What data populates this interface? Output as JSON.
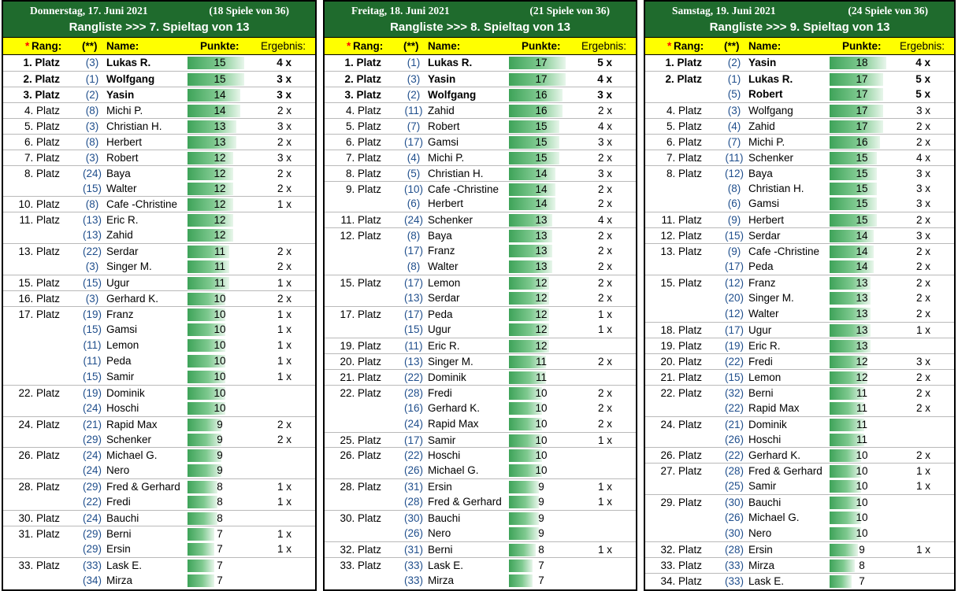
{
  "columns": {
    "star": "*",
    "rank": "Rang:",
    "prev": "(**)",
    "name": "Name:",
    "points": "Punkte:",
    "result": "Ergebnis:"
  },
  "colors": {
    "header_bg": "#1f6b2d",
    "columns_bg": "#ffff00",
    "bar": "#3ea359",
    "prev_text": "#1f4e8c",
    "star": "#ff0000"
  },
  "panels": [
    {
      "date": "Donnerstag, 17. Juni 2021",
      "games": "(18 Spiele von 36)",
      "subtitle": "Rangliste >>> 7. Spieltag von 13",
      "rows": [
        {
          "rank": "1. Platz",
          "prev": "(3)",
          "name": "Lukas R.",
          "pts": 15,
          "res": "4 x"
        },
        {
          "rank": "2. Platz",
          "prev": "(1)",
          "name": "Wolfgang",
          "pts": 15,
          "res": "3 x"
        },
        {
          "rank": "3. Platz",
          "prev": "(2)",
          "name": "Yasin",
          "pts": 14,
          "res": "3 x"
        },
        {
          "rank": "4. Platz",
          "prev": "(8)",
          "name": "Michi P.",
          "pts": 14,
          "res": "2 x"
        },
        {
          "rank": "5. Platz",
          "prev": "(3)",
          "name": "Christian H.",
          "pts": 13,
          "res": "3 x"
        },
        {
          "rank": "6. Platz",
          "prev": "(8)",
          "name": "Herbert",
          "pts": 13,
          "res": "2 x"
        },
        {
          "rank": "7. Platz",
          "prev": "(3)",
          "name": "Robert",
          "pts": 12,
          "res": "3 x"
        },
        {
          "rank": "8. Platz",
          "prev": "(24)",
          "name": "Baya",
          "pts": 12,
          "res": "2 x"
        },
        {
          "rank": "",
          "prev": "(15)",
          "name": "Walter",
          "pts": 12,
          "res": "2 x"
        },
        {
          "rank": "10. Platz",
          "prev": "(8)",
          "name": "Cafe -Christine",
          "pts": 12,
          "res": "1 x"
        },
        {
          "rank": "11. Platz",
          "prev": "(13)",
          "name": "Eric R.",
          "pts": 12,
          "res": ""
        },
        {
          "rank": "",
          "prev": "(13)",
          "name": "Zahid",
          "pts": 12,
          "res": ""
        },
        {
          "rank": "13. Platz",
          "prev": "(22)",
          "name": "Serdar",
          "pts": 11,
          "res": "2 x"
        },
        {
          "rank": "",
          "prev": "(3)",
          "name": "Singer M.",
          "pts": 11,
          "res": "2 x"
        },
        {
          "rank": "15. Platz",
          "prev": "(15)",
          "name": "Ugur",
          "pts": 11,
          "res": "1 x"
        },
        {
          "rank": "16. Platz",
          "prev": "(3)",
          "name": "Gerhard K.",
          "pts": 10,
          "res": "2 x"
        },
        {
          "rank": "17. Platz",
          "prev": "(19)",
          "name": "Franz",
          "pts": 10,
          "res": "1 x"
        },
        {
          "rank": "",
          "prev": "(15)",
          "name": "Gamsi",
          "pts": 10,
          "res": "1 x"
        },
        {
          "rank": "",
          "prev": "(11)",
          "name": "Lemon",
          "pts": 10,
          "res": "1 x"
        },
        {
          "rank": "",
          "prev": "(11)",
          "name": "Peda",
          "pts": 10,
          "res": "1 x"
        },
        {
          "rank": "",
          "prev": "(15)",
          "name": "Samir",
          "pts": 10,
          "res": "1 x"
        },
        {
          "rank": "22. Platz",
          "prev": "(19)",
          "name": "Dominik",
          "pts": 10,
          "res": ""
        },
        {
          "rank": "",
          "prev": "(24)",
          "name": "Hoschi",
          "pts": 10,
          "res": ""
        },
        {
          "rank": "24. Platz",
          "prev": "(21)",
          "name": "Rapid Max",
          "pts": 9,
          "res": "2 x"
        },
        {
          "rank": "",
          "prev": "(29)",
          "name": "Schenker",
          "pts": 9,
          "res": "2 x"
        },
        {
          "rank": "26. Platz",
          "prev": "(24)",
          "name": "Michael G.",
          "pts": 9,
          "res": ""
        },
        {
          "rank": "",
          "prev": "(24)",
          "name": "Nero",
          "pts": 9,
          "res": ""
        },
        {
          "rank": "28. Platz",
          "prev": "(29)",
          "name": "Fred & Gerhard",
          "pts": 8,
          "res": "1 x"
        },
        {
          "rank": "",
          "prev": "(22)",
          "name": "Fredi",
          "pts": 8,
          "res": "1 x"
        },
        {
          "rank": "30. Platz",
          "prev": "(24)",
          "name": "Bauchi",
          "pts": 8,
          "res": ""
        },
        {
          "rank": "31. Platz",
          "prev": "(29)",
          "name": "Berni",
          "pts": 7,
          "res": "1 x"
        },
        {
          "rank": "",
          "prev": "(29)",
          "name": "Ersin",
          "pts": 7,
          "res": "1 x"
        },
        {
          "rank": "33. Platz",
          "prev": "(33)",
          "name": "Lask E.",
          "pts": 7,
          "res": ""
        },
        {
          "rank": "",
          "prev": "(34)",
          "name": "Mirza",
          "pts": 7,
          "res": ""
        }
      ]
    },
    {
      "date": "Freitag, 18. Juni 2021",
      "games": "(21 Spiele von 36)",
      "subtitle": "Rangliste >>> 8. Spieltag von 13",
      "rows": [
        {
          "rank": "1. Platz",
          "prev": "(1)",
          "name": "Lukas R.",
          "pts": 17,
          "res": "5 x"
        },
        {
          "rank": "2. Platz",
          "prev": "(3)",
          "name": "Yasin",
          "pts": 17,
          "res": "4 x"
        },
        {
          "rank": "3. Platz",
          "prev": "(2)",
          "name": "Wolfgang",
          "pts": 16,
          "res": "3 x"
        },
        {
          "rank": "4. Platz",
          "prev": "(11)",
          "name": "Zahid",
          "pts": 16,
          "res": "2 x"
        },
        {
          "rank": "5. Platz",
          "prev": "(7)",
          "name": "Robert",
          "pts": 15,
          "res": "4 x"
        },
        {
          "rank": "6. Platz",
          "prev": "(17)",
          "name": "Gamsi",
          "pts": 15,
          "res": "3 x"
        },
        {
          "rank": "7. Platz",
          "prev": "(4)",
          "name": "Michi P.",
          "pts": 15,
          "res": "2 x"
        },
        {
          "rank": "8. Platz",
          "prev": "(5)",
          "name": "Christian H.",
          "pts": 14,
          "res": "3 x"
        },
        {
          "rank": "9. Platz",
          "prev": "(10)",
          "name": "Cafe -Christine",
          "pts": 14,
          "res": "2 x"
        },
        {
          "rank": "",
          "prev": "(6)",
          "name": "Herbert",
          "pts": 14,
          "res": "2 x"
        },
        {
          "rank": "11. Platz",
          "prev": "(24)",
          "name": "Schenker",
          "pts": 13,
          "res": "4 x"
        },
        {
          "rank": "12. Platz",
          "prev": "(8)",
          "name": "Baya",
          "pts": 13,
          "res": "2 x"
        },
        {
          "rank": "",
          "prev": "(17)",
          "name": "Franz",
          "pts": 13,
          "res": "2 x"
        },
        {
          "rank": "",
          "prev": "(8)",
          "name": "Walter",
          "pts": 13,
          "res": "2 x"
        },
        {
          "rank": "15. Platz",
          "prev": "(17)",
          "name": "Lemon",
          "pts": 12,
          "res": "2 x"
        },
        {
          "rank": "",
          "prev": "(13)",
          "name": "Serdar",
          "pts": 12,
          "res": "2 x"
        },
        {
          "rank": "17. Platz",
          "prev": "(17)",
          "name": "Peda",
          "pts": 12,
          "res": "1 x"
        },
        {
          "rank": "",
          "prev": "(15)",
          "name": "Ugur",
          "pts": 12,
          "res": "1 x"
        },
        {
          "rank": "19. Platz",
          "prev": "(11)",
          "name": "Eric R.",
          "pts": 12,
          "res": ""
        },
        {
          "rank": "20. Platz",
          "prev": "(13)",
          "name": "Singer M.",
          "pts": 11,
          "res": "2 x"
        },
        {
          "rank": "21. Platz",
          "prev": "(22)",
          "name": "Dominik",
          "pts": 11,
          "res": ""
        },
        {
          "rank": "22. Platz",
          "prev": "(28)",
          "name": "Fredi",
          "pts": 10,
          "res": "2 x"
        },
        {
          "rank": "",
          "prev": "(16)",
          "name": "Gerhard K.",
          "pts": 10,
          "res": "2 x"
        },
        {
          "rank": "",
          "prev": "(24)",
          "name": "Rapid Max",
          "pts": 10,
          "res": "2 x"
        },
        {
          "rank": "25. Platz",
          "prev": "(17)",
          "name": "Samir",
          "pts": 10,
          "res": "1 x"
        },
        {
          "rank": "26. Platz",
          "prev": "(22)",
          "name": "Hoschi",
          "pts": 10,
          "res": ""
        },
        {
          "rank": "",
          "prev": "(26)",
          "name": "Michael G.",
          "pts": 10,
          "res": ""
        },
        {
          "rank": "28. Platz",
          "prev": "(31)",
          "name": "Ersin",
          "pts": 9,
          "res": "1 x"
        },
        {
          "rank": "",
          "prev": "(28)",
          "name": "Fred & Gerhard",
          "pts": 9,
          "res": "1 x"
        },
        {
          "rank": "30. Platz",
          "prev": "(30)",
          "name": "Bauchi",
          "pts": 9,
          "res": ""
        },
        {
          "rank": "",
          "prev": "(26)",
          "name": "Nero",
          "pts": 9,
          "res": ""
        },
        {
          "rank": "32. Platz",
          "prev": "(31)",
          "name": "Berni",
          "pts": 8,
          "res": "1 x"
        },
        {
          "rank": "33. Platz",
          "prev": "(33)",
          "name": "Lask E.",
          "pts": 7,
          "res": ""
        },
        {
          "rank": "",
          "prev": "(33)",
          "name": "Mirza",
          "pts": 7,
          "res": ""
        }
      ]
    },
    {
      "date": "Samstag, 19. Juni 2021",
      "games": "(24 Spiele von 36)",
      "subtitle": "Rangliste >>> 9. Spieltag von 13",
      "rows": [
        {
          "rank": "1. Platz",
          "prev": "(2)",
          "name": "Yasin",
          "pts": 18,
          "res": "4 x"
        },
        {
          "rank": "2. Platz",
          "prev": "(1)",
          "name": "Lukas R.",
          "pts": 17,
          "res": "5 x"
        },
        {
          "rank": "",
          "prev": "(5)",
          "name": "Robert",
          "pts": 17,
          "res": "5 x"
        },
        {
          "rank": "4. Platz",
          "prev": "(3)",
          "name": "Wolfgang",
          "pts": 17,
          "res": "3 x"
        },
        {
          "rank": "5. Platz",
          "prev": "(4)",
          "name": "Zahid",
          "pts": 17,
          "res": "2 x"
        },
        {
          "rank": "6. Platz",
          "prev": "(7)",
          "name": "Michi P.",
          "pts": 16,
          "res": "2 x"
        },
        {
          "rank": "7. Platz",
          "prev": "(11)",
          "name": "Schenker",
          "pts": 15,
          "res": "4 x"
        },
        {
          "rank": "8. Platz",
          "prev": "(12)",
          "name": "Baya",
          "pts": 15,
          "res": "3 x"
        },
        {
          "rank": "",
          "prev": "(8)",
          "name": "Christian H.",
          "pts": 15,
          "res": "3 x"
        },
        {
          "rank": "",
          "prev": "(6)",
          "name": "Gamsi",
          "pts": 15,
          "res": "3 x"
        },
        {
          "rank": "11. Platz",
          "prev": "(9)",
          "name": "Herbert",
          "pts": 15,
          "res": "2 x"
        },
        {
          "rank": "12. Platz",
          "prev": "(15)",
          "name": "Serdar",
          "pts": 14,
          "res": "3 x"
        },
        {
          "rank": "13. Platz",
          "prev": "(9)",
          "name": "Cafe -Christine",
          "pts": 14,
          "res": "2 x"
        },
        {
          "rank": "",
          "prev": "(17)",
          "name": "Peda",
          "pts": 14,
          "res": "2 x"
        },
        {
          "rank": "15. Platz",
          "prev": "(12)",
          "name": "Franz",
          "pts": 13,
          "res": "2 x"
        },
        {
          "rank": "",
          "prev": "(20)",
          "name": "Singer M.",
          "pts": 13,
          "res": "2 x"
        },
        {
          "rank": "",
          "prev": "(12)",
          "name": "Walter",
          "pts": 13,
          "res": "2 x"
        },
        {
          "rank": "18. Platz",
          "prev": "(17)",
          "name": "Ugur",
          "pts": 13,
          "res": "1 x"
        },
        {
          "rank": "19. Platz",
          "prev": "(19)",
          "name": "Eric R.",
          "pts": 13,
          "res": ""
        },
        {
          "rank": "20. Platz",
          "prev": "(22)",
          "name": "Fredi",
          "pts": 12,
          "res": "3 x"
        },
        {
          "rank": "21. Platz",
          "prev": "(15)",
          "name": "Lemon",
          "pts": 12,
          "res": "2 x"
        },
        {
          "rank": "22. Platz",
          "prev": "(32)",
          "name": "Berni",
          "pts": 11,
          "res": "2 x"
        },
        {
          "rank": "",
          "prev": "(22)",
          "name": "Rapid Max",
          "pts": 11,
          "res": "2 x"
        },
        {
          "rank": "24. Platz",
          "prev": "(21)",
          "name": "Dominik",
          "pts": 11,
          "res": ""
        },
        {
          "rank": "",
          "prev": "(26)",
          "name": "Hoschi",
          "pts": 11,
          "res": ""
        },
        {
          "rank": "26. Platz",
          "prev": "(22)",
          "name": "Gerhard K.",
          "pts": 10,
          "res": "2 x"
        },
        {
          "rank": "27. Platz",
          "prev": "(28)",
          "name": "Fred & Gerhard",
          "pts": 10,
          "res": "1 x"
        },
        {
          "rank": "",
          "prev": "(25)",
          "name": "Samir",
          "pts": 10,
          "res": "1 x"
        },
        {
          "rank": "29. Platz",
          "prev": "(30)",
          "name": "Bauchi",
          "pts": 10,
          "res": ""
        },
        {
          "rank": "",
          "prev": "(26)",
          "name": "Michael G.",
          "pts": 10,
          "res": ""
        },
        {
          "rank": "",
          "prev": "(30)",
          "name": "Nero",
          "pts": 10,
          "res": ""
        },
        {
          "rank": "32. Platz",
          "prev": "(28)",
          "name": "Ersin",
          "pts": 9,
          "res": "1 x"
        },
        {
          "rank": "33. Platz",
          "prev": "(33)",
          "name": "Mirza",
          "pts": 8,
          "res": ""
        },
        {
          "rank": "34. Platz",
          "prev": "(33)",
          "name": "Lask E.",
          "pts": 7,
          "res": ""
        }
      ]
    }
  ]
}
